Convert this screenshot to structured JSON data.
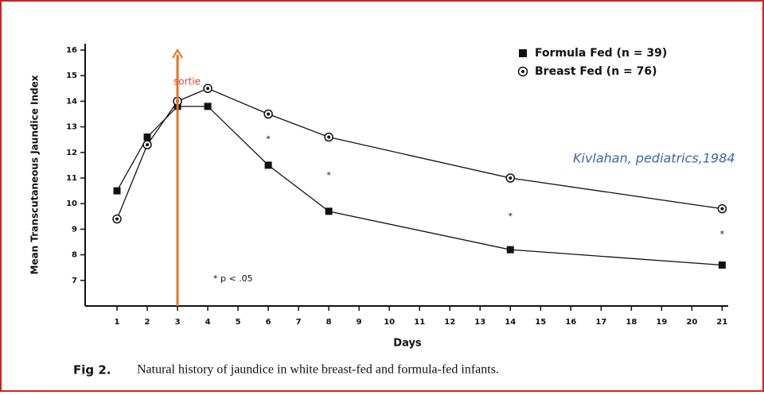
{
  "chart_data": {
    "type": "line",
    "y_label": "Mean Transcutaneous Jaundice Index",
    "x_label": "Days",
    "caption_label": "Fig 2.",
    "caption": "Natural history of jaundice in white breast-fed and formula-fed infants.",
    "source": "Kivlahan, pediatrics,1984",
    "note": "* p < .05",
    "xlim": [
      0,
      21.2
    ],
    "xticks": [
      1,
      2,
      3,
      4,
      5,
      6,
      7,
      8,
      9,
      10,
      11,
      12,
      13,
      14,
      15,
      16,
      17,
      18,
      19,
      20,
      21
    ],
    "ylim": [
      6,
      16
    ],
    "yticks": [
      7,
      8,
      9,
      10,
      11,
      12,
      13,
      14,
      15,
      16
    ],
    "legend": "upper right",
    "series": [
      {
        "name": "Formula Fed (n = 39)",
        "color": "#111111",
        "marker": "square",
        "x": [
          1,
          2,
          3,
          4,
          6,
          8,
          14,
          21
        ],
        "values": [
          10.5,
          12.6,
          13.8,
          13.8,
          11.5,
          9.7,
          8.2,
          7.6
        ]
      },
      {
        "name": "Breast Fed (n = 76)",
        "color": "#111111",
        "marker": "circle",
        "x": [
          1,
          2,
          3,
          4,
          6,
          8,
          14,
          21
        ],
        "values": [
          9.4,
          12.3,
          14.0,
          14.5,
          13.5,
          12.6,
          11.0,
          9.8
        ]
      }
    ],
    "significance": {
      "label": "*",
      "x": [
        6,
        8,
        14,
        21
      ],
      "values": [
        12.5,
        11.1,
        9.5,
        8.8
      ]
    },
    "arrow": {
      "text": "sortie",
      "x": 3,
      "color": "#e8731f",
      "text_color": "#e8402a"
    }
  }
}
